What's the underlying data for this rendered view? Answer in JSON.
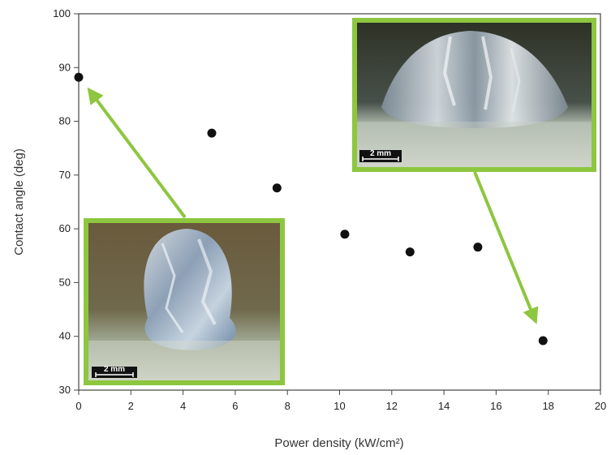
{
  "chart_data": {
    "type": "scatter",
    "title": "",
    "xlabel": "Power density (kW/cm²)",
    "ylabel": "Contact angle (deg)",
    "xlim": [
      0,
      20
    ],
    "ylim": [
      30,
      100
    ],
    "x_ticks": [
      "0",
      "2",
      "4",
      "6",
      "8",
      "10",
      "12",
      "14",
      "16",
      "18",
      "20"
    ],
    "y_ticks": [
      "30",
      "40",
      "50",
      "60",
      "70",
      "80",
      "90",
      "100"
    ],
    "grid": false,
    "legend": "none",
    "series": [
      {
        "x": [
          0,
          5.1,
          7.6,
          10.2,
          12.7,
          15.3,
          17.8
        ],
        "y": [
          88.2,
          77.8,
          67.6,
          59.0,
          55.7,
          56.6,
          39.2
        ]
      }
    ],
    "annotations": {
      "low_power_inset": {
        "scale_label": "2 mm",
        "points_to": {
          "x": 0,
          "y": 88.2
        }
      },
      "high_power_inset": {
        "scale_label": "2 mm",
        "points_to": {
          "x": 17.8,
          "y": 39.2
        }
      }
    },
    "colors": {
      "marker": "#111111",
      "inset_frame": "#8dc63f",
      "arrow": "#8dc63f"
    }
  }
}
